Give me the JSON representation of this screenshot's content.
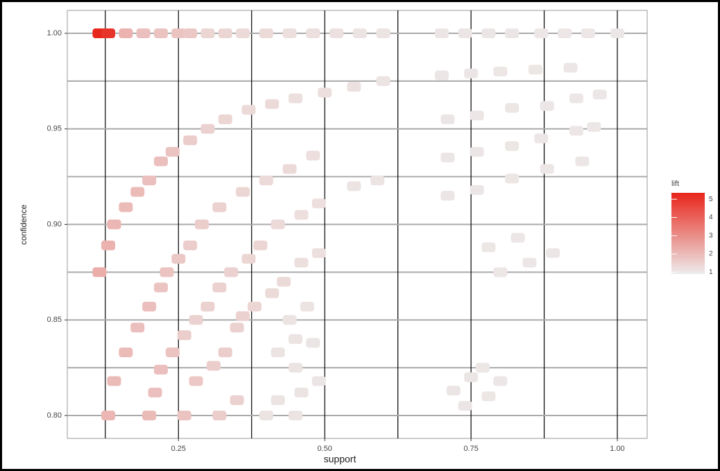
{
  "chart_data": {
    "type": "scatter",
    "x_label": "support",
    "y_label": "confidence",
    "legend_title": "lift",
    "low_color": "#ececec",
    "high_color": "#e8251a",
    "xlim": [
      0.06,
      1.051
    ],
    "ylim": [
      0.788,
      1.012
    ],
    "colorlim": [
      0.9,
      5.35
    ],
    "xticks": [
      0.25,
      {
        "value": 0.5,
        "label": "0.50"
      },
      0.75,
      {
        "value": 1.0,
        "label": "1.00"
      }
    ],
    "yticks": [
      {
        "value": 0.8,
        "label": "0.80"
      },
      0.85,
      {
        "value": 0.9,
        "label": "0.90"
      },
      0.95,
      {
        "value": 1.0,
        "label": "1.00"
      }
    ],
    "xminor": [
      0.125,
      0.375,
      0.625,
      0.875
    ],
    "yminor": [
      0.825,
      0.875,
      0.925,
      0.975
    ],
    "colorticks": [
      1,
      2,
      3,
      4,
      5
    ],
    "grid": true,
    "x": [
      0.115,
      0.13,
      0.16,
      0.19,
      0.22,
      0.25,
      0.27,
      0.3,
      0.33,
      0.36,
      0.4,
      0.44,
      0.48,
      0.52,
      0.56,
      0.6,
      0.7,
      0.74,
      0.78,
      0.82,
      0.87,
      0.91,
      0.95,
      1.0,
      0.115,
      0.13,
      0.14,
      0.16,
      0.18,
      0.2,
      0.22,
      0.24,
      0.27,
      0.3,
      0.33,
      0.37,
      0.41,
      0.45,
      0.5,
      0.55,
      0.6,
      0.13,
      0.14,
      0.16,
      0.18,
      0.2,
      0.22,
      0.23,
      0.25,
      0.27,
      0.29,
      0.32,
      0.36,
      0.4,
      0.44,
      0.48,
      0.2,
      0.21,
      0.22,
      0.24,
      0.26,
      0.28,
      0.3,
      0.32,
      0.34,
      0.37,
      0.39,
      0.42,
      0.46,
      0.49,
      0.55,
      0.59,
      0.26,
      0.28,
      0.31,
      0.33,
      0.35,
      0.36,
      0.38,
      0.41,
      0.43,
      0.46,
      0.49,
      0.32,
      0.35,
      0.4,
      0.42,
      0.45,
      0.46,
      0.45,
      0.49,
      0.42,
      0.45,
      0.48,
      0.44,
      0.47,
      0.7,
      0.75,
      0.8,
      0.86,
      0.92,
      0.71,
      0.76,
      0.82,
      0.88,
      0.93,
      0.97,
      0.71,
      0.76,
      0.82,
      0.87,
      0.93,
      0.96,
      0.71,
      0.76,
      0.82,
      0.88,
      0.94,
      0.78,
      0.83,
      0.8,
      0.85,
      0.89,
      0.72,
      0.75,
      0.77,
      0.8,
      0.74,
      0.78
    ],
    "y": [
      1,
      1,
      1,
      1,
      1,
      1,
      1,
      1,
      1,
      1,
      1,
      1,
      1,
      1,
      1,
      1,
      1,
      1,
      1,
      1,
      1,
      1,
      1,
      1,
      0.875,
      0.889,
      0.9,
      0.909,
      0.917,
      0.923,
      0.933,
      0.938,
      0.944,
      0.95,
      0.955,
      0.96,
      0.963,
      0.966,
      0.969,
      0.972,
      0.975,
      0.8,
      0.818,
      0.833,
      0.846,
      0.857,
      0.867,
      0.875,
      0.882,
      0.889,
      0.9,
      0.909,
      0.917,
      0.923,
      0.929,
      0.936,
      0.8,
      0.812,
      0.824,
      0.833,
      0.842,
      0.85,
      0.857,
      0.867,
      0.875,
      0.882,
      0.889,
      0.9,
      0.905,
      0.911,
      0.92,
      0.923,
      0.8,
      0.818,
      0.826,
      0.833,
      0.846,
      0.852,
      0.857,
      0.864,
      0.87,
      0.88,
      0.885,
      0.8,
      0.808,
      0.8,
      0.808,
      0.8,
      0.812,
      0.825,
      0.818,
      0.833,
      0.84,
      0.838,
      0.85,
      0.857,
      0.978,
      0.979,
      0.98,
      0.981,
      0.982,
      0.955,
      0.957,
      0.961,
      0.962,
      0.966,
      0.968,
      0.935,
      0.938,
      0.941,
      0.945,
      0.949,
      0.951,
      0.915,
      0.918,
      0.924,
      0.929,
      0.933,
      0.888,
      0.893,
      0.875,
      0.88,
      0.885,
      0.813,
      0.82,
      0.825,
      0.818,
      0.805,
      0.81
    ],
    "lift": [
      5.3,
      5.0,
      2.2,
      1.9,
      1.8,
      1.8,
      1.7,
      1.4,
      1.4,
      1.3,
      1.3,
      1.2,
      1.2,
      1.15,
      1.1,
      1.1,
      1.05,
      1.05,
      1.05,
      1.05,
      1.03,
      1.02,
      1.02,
      1.01,
      2.3,
      2.2,
      2.1,
      2.0,
      2.0,
      1.9,
      1.9,
      1.8,
      1.6,
      1.5,
      1.4,
      1.3,
      1.3,
      1.2,
      1.2,
      1.15,
      1.1,
      2.1,
      2.0,
      2.0,
      1.9,
      1.9,
      1.8,
      1.8,
      1.7,
      1.6,
      1.6,
      1.5,
      1.4,
      1.3,
      1.3,
      1.2,
      2.0,
      1.9,
      1.9,
      1.8,
      1.6,
      1.5,
      1.5,
      1.5,
      1.5,
      1.4,
      1.4,
      1.3,
      1.2,
      1.2,
      1.1,
      1.1,
      1.8,
      1.7,
      1.6,
      1.6,
      1.5,
      1.5,
      1.4,
      1.3,
      1.3,
      1.2,
      1.2,
      1.6,
      1.5,
      1.1,
      1.1,
      1.1,
      1.1,
      1.1,
      1.05,
      1.1,
      1.1,
      1.05,
      1.1,
      1.1,
      1.05,
      1.05,
      1.04,
      1.04,
      1.03,
      1.05,
      1.05,
      1.04,
      1.03,
      1.02,
      1.02,
      1.05,
      1.05,
      1.04,
      1.03,
      1.02,
      1.02,
      1.05,
      1.05,
      1.04,
      1.03,
      1.02,
      1.04,
      1.03,
      1.04,
      1.03,
      1.02,
      1.05,
      1.05,
      1.04,
      1.03,
      1.05,
      1.04
    ]
  }
}
